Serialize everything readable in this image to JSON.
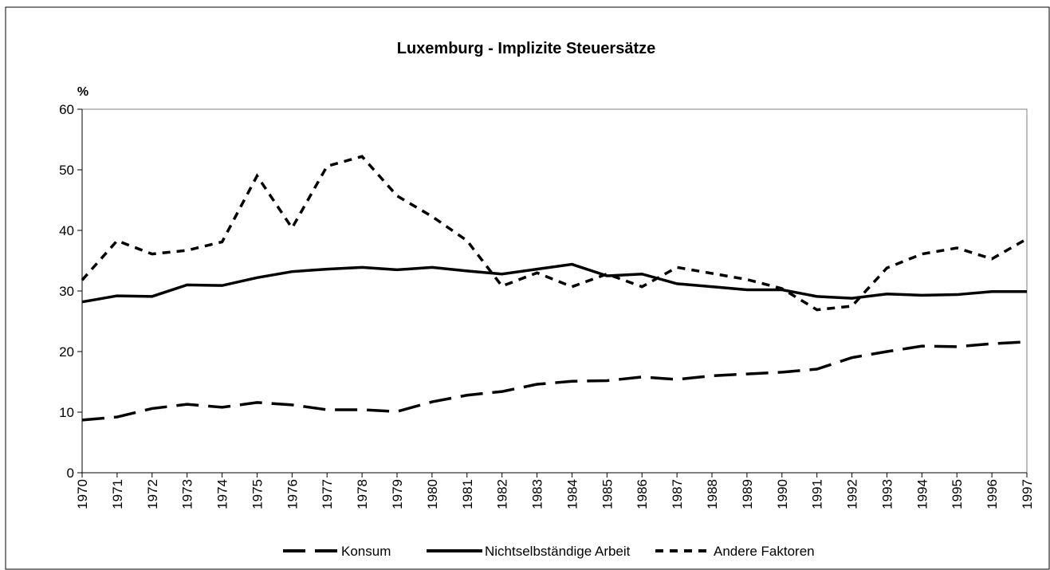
{
  "chart_data": {
    "type": "line",
    "title": "Luxemburg - Implizite Steuersätze",
    "y_label": "%",
    "x": [
      1970,
      1971,
      1972,
      1973,
      1974,
      1975,
      1976,
      1977,
      1978,
      1979,
      1980,
      1981,
      1982,
      1983,
      1984,
      1985,
      1986,
      1987,
      1988,
      1989,
      1990,
      1991,
      1992,
      1993,
      1994,
      1995,
      1996,
      1997
    ],
    "xlim": [
      1970,
      1997
    ],
    "xticks": [
      1970,
      1971,
      1972,
      1973,
      1974,
      1975,
      1976,
      1977,
      1978,
      1979,
      1980,
      1981,
      1982,
      1983,
      1984,
      1985,
      1986,
      1987,
      1988,
      1989,
      1990,
      1991,
      1992,
      1993,
      1994,
      1995,
      1996,
      1997
    ],
    "ylim": [
      0,
      60
    ],
    "yticks": [
      0,
      10,
      20,
      30,
      40,
      50,
      60
    ],
    "grid": false,
    "legend": "bottom",
    "series": [
      {
        "name": "Konsum",
        "color": "#000000",
        "dash": "28 12",
        "values": [
          8.7,
          9.2,
          10.6,
          11.3,
          10.8,
          11.6,
          11.2,
          10.4,
          10.4,
          10.1,
          11.7,
          12.8,
          13.4,
          14.6,
          15.1,
          15.2,
          15.8,
          15.4,
          16.0,
          16.3,
          16.6,
          17.1,
          19.0,
          20.0,
          20.9,
          20.8,
          21.3,
          21.6
        ]
      },
      {
        "name": "Nichtselbständige Arbeit",
        "color": "#000000",
        "dash": "none",
        "values": [
          28.2,
          29.2,
          29.1,
          31.0,
          30.9,
          32.2,
          33.2,
          33.6,
          33.9,
          33.5,
          33.9,
          33.3,
          32.8,
          33.6,
          34.4,
          32.5,
          32.8,
          31.2,
          30.7,
          30.2,
          30.2,
          29.1,
          28.8,
          29.5,
          29.3,
          29.4,
          29.9,
          29.9
        ]
      },
      {
        "name": "Andere Faktoren",
        "color": "#000000",
        "dash": "10 8",
        "values": [
          31.8,
          38.3,
          36.1,
          36.7,
          38.1,
          49.0,
          40.4,
          50.6,
          52.2,
          45.7,
          42.3,
          38.3,
          30.8,
          33.0,
          30.7,
          32.8,
          30.7,
          33.9,
          32.9,
          31.9,
          30.4,
          26.9,
          27.5,
          33.8,
          36.1,
          37.1,
          35.3,
          38.6
        ]
      }
    ]
  }
}
